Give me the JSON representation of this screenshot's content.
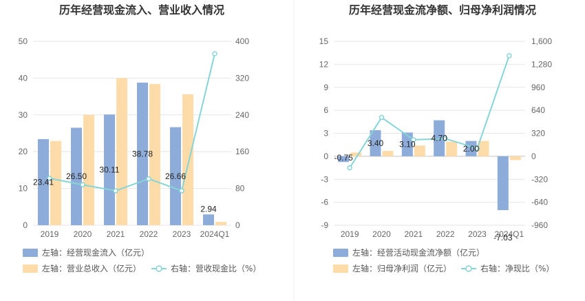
{
  "colors": {
    "bar_blue": "#8eacd9",
    "bar_yellow": "#fddcaa",
    "line": "#87d4d6",
    "grid": "#e6e6e6",
    "divider": "#eeeeee"
  },
  "chart_data": [
    {
      "type": "bar",
      "title": "历年经营现金流入、营业收入情况",
      "categories": [
        "2019",
        "2020",
        "2021",
        "2022",
        "2023",
        "2024Q1"
      ],
      "left_axis": {
        "ticks": [
          "0",
          "10",
          "20",
          "30",
          "40",
          "50"
        ],
        "ylim": [
          0,
          50
        ]
      },
      "right_axis": {
        "ticks": [
          "0",
          "80",
          "160",
          "240",
          "320",
          "400"
        ],
        "ylim": [
          0,
          400
        ]
      },
      "series": [
        {
          "name": "左轴：经营现金流入（亿元）",
          "kind": "bar",
          "axis": "left",
          "color": "#8eacd9",
          "values": [
            23.41,
            26.5,
            30.11,
            38.78,
            26.66,
            2.94
          ],
          "labels": [
            "23.41",
            "26.50",
            "30.11",
            "38.78",
            "26.66",
            "2.94"
          ]
        },
        {
          "name": "左轴：营业总收入（亿元）",
          "kind": "bar",
          "axis": "left",
          "color": "#fddcaa",
          "values": [
            22.9,
            30.0,
            40.0,
            38.4,
            35.6,
            0.9
          ]
        },
        {
          "name": "右轴：营收现金比（%）",
          "kind": "line",
          "axis": "right",
          "color": "#87d4d6",
          "values": [
            102,
            88,
            75,
            101,
            75,
            373
          ]
        }
      ],
      "legend": [
        {
          "text": "左轴：经营现金流入（亿元）",
          "shape": "rect",
          "color": "#8eacd9"
        },
        {
          "text": "左轴：营业总收入（亿元）",
          "shape": "rect",
          "color": "#fddcaa"
        },
        {
          "text": "右轴：营收现金比（%）",
          "shape": "line",
          "color": "#87d4d6"
        }
      ]
    },
    {
      "type": "bar",
      "title": "历年经营现金流净额、归母净利润情况",
      "categories": [
        "2019",
        "2020",
        "2021",
        "2022",
        "2023",
        "2024Q1"
      ],
      "left_axis": {
        "ticks": [
          "-9",
          "-6",
          "-3",
          "0",
          "3",
          "6",
          "9",
          "12",
          "15"
        ],
        "ylim": [
          -9,
          15
        ]
      },
      "right_axis": {
        "ticks": [
          "-960",
          "-640",
          "-320",
          "0",
          "320",
          "640",
          "960",
          "1,280",
          "1,600"
        ],
        "ylim": [
          -960,
          1600
        ]
      },
      "series": [
        {
          "name": "左轴：经营活动现金流净额（亿元）",
          "kind": "bar",
          "axis": "left",
          "color": "#8eacd9",
          "values": [
            -0.75,
            3.4,
            3.1,
            4.7,
            2.0,
            -7.03
          ],
          "labels": [
            "-0.75",
            "3.40",
            "3.10",
            "4.70",
            "2.00",
            "-7.03"
          ]
        },
        {
          "name": "左轴：归母净利润（亿元）",
          "kind": "bar",
          "axis": "left",
          "color": "#fddcaa",
          "values": [
            0.5,
            0.7,
            1.4,
            1.9,
            2.0,
            -0.5
          ]
        },
        {
          "name": "右轴：净现比（%）",
          "kind": "line",
          "axis": "right",
          "color": "#87d4d6",
          "values": [
            -160,
            540,
            230,
            245,
            110,
            1400
          ]
        }
      ],
      "legend": [
        {
          "text": "左轴：经营活动现金流净额（亿元）",
          "shape": "rect",
          "color": "#8eacd9"
        },
        {
          "text": "左轴：归母净利润（亿元）",
          "shape": "rect",
          "color": "#fddcaa"
        },
        {
          "text": "右轴：净现比（%）",
          "shape": "line",
          "color": "#87d4d6"
        }
      ]
    }
  ]
}
